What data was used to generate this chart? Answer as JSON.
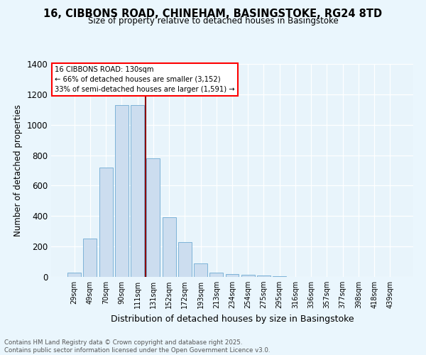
{
  "title_line1": "16, CIBBONS ROAD, CHINEHAM, BASINGSTOKE, RG24 8TD",
  "title_line2": "Size of property relative to detached houses in Basingstoke",
  "xlabel": "Distribution of detached houses by size in Basingstoke",
  "ylabel": "Number of detached properties",
  "categories": [
    "29sqm",
    "49sqm",
    "70sqm",
    "90sqm",
    "111sqm",
    "131sqm",
    "152sqm",
    "172sqm",
    "193sqm",
    "213sqm",
    "234sqm",
    "254sqm",
    "275sqm",
    "295sqm",
    "316sqm",
    "336sqm",
    "357sqm",
    "377sqm",
    "398sqm",
    "418sqm",
    "439sqm"
  ],
  "values": [
    30,
    250,
    720,
    1130,
    1130,
    780,
    390,
    230,
    90,
    30,
    20,
    15,
    8,
    4,
    2,
    0,
    0,
    0,
    0,
    0,
    0
  ],
  "bar_color": "#ccddef",
  "bar_edge_color": "#7db3d8",
  "vline_color": "#8B0000",
  "annotation_text": "16 CIBBONS ROAD: 130sqm\n← 66% of detached houses are smaller (3,152)\n33% of semi-detached houses are larger (1,591) →",
  "ylim": [
    0,
    1400
  ],
  "yticks": [
    0,
    200,
    400,
    600,
    800,
    1000,
    1200,
    1400
  ],
  "bg_color": "#e8f4fb",
  "fig_bg_color": "#eaf6fd",
  "footer_line1": "Contains HM Land Registry data © Crown copyright and database right 2025.",
  "footer_line2": "Contains public sector information licensed under the Open Government Licence v3.0."
}
